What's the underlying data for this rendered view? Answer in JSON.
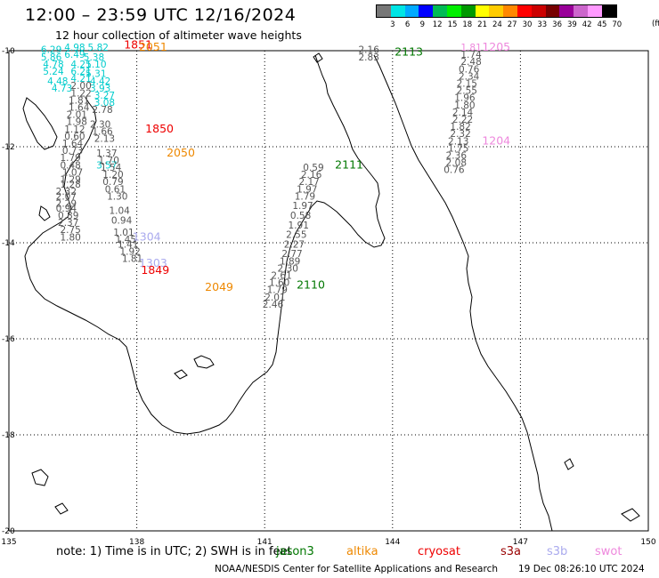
{
  "title": "12:00 – 23:59 UTC 12/16/2024",
  "subtitle": "12 hour collection of altimeter wave heights",
  "colorbar": {
    "colors": [
      "#777777",
      "#00e5e5",
      "#00aaff",
      "#0000ff",
      "#00bb55",
      "#00ee00",
      "#009900",
      "#ffff00",
      "#ffcc00",
      "#ff8800",
      "#ff0000",
      "#cc0000",
      "#770000",
      "#990099",
      "#cc66cc",
      "#ff99ff",
      "#000000"
    ],
    "ticks": [
      "3",
      "6",
      "9",
      "12",
      "15",
      "18",
      "21",
      "24",
      "27",
      "30",
      "33",
      "36",
      "39",
      "42",
      "45",
      "70"
    ],
    "unit": "(ft)"
  },
  "map": {
    "x_axis": [
      "135",
      "138",
      "141",
      "144",
      "147",
      "150"
    ],
    "y_axis": [
      "-10",
      "-12",
      "-14",
      "-16",
      "-18",
      "-20"
    ],
    "lon_range": [
      135,
      150
    ],
    "lat_range": [
      -20,
      -10
    ],
    "tracks": [
      {
        "satellite": "jason3",
        "color": "#007700",
        "label": "2113",
        "label_lat": -10.1,
        "label_lon": 144.05,
        "points": [
          {
            "lat": -10.05,
            "lon": 143.2,
            "v": "2.16"
          },
          {
            "lat": -10.2,
            "lon": 143.2,
            "v": "2.83"
          }
        ]
      },
      {
        "satellite": "swot",
        "color": "#ee88dd",
        "label": "1205",
        "label_lat": -10.0,
        "label_lon": 146.1,
        "points": [
          {
            "lat": -10.0,
            "lon": 145.6,
            "v": "1.81"
          }
        ]
      },
      {
        "satellite": "swot",
        "color": "#ee88dd",
        "label": "1204",
        "label_lat": -11.95,
        "label_lon": 146.1,
        "points": []
      },
      {
        "satellite": "other",
        "color": "#555555",
        "label": "",
        "label_lat": 0,
        "label_lon": 0,
        "points": [
          {
            "lat": -10.15,
            "lon": 145.6,
            "v": "1.74"
          },
          {
            "lat": -10.3,
            "lon": 145.6,
            "v": "2.48"
          },
          {
            "lat": -10.45,
            "lon": 145.55,
            "v": "0.76"
          },
          {
            "lat": -10.6,
            "lon": 145.55,
            "v": "2.34"
          },
          {
            "lat": -10.75,
            "lon": 145.5,
            "v": "2.15"
          },
          {
            "lat": -10.9,
            "lon": 145.5,
            "v": "2.55"
          },
          {
            "lat": -11.05,
            "lon": 145.45,
            "v": "1.96"
          },
          {
            "lat": -11.2,
            "lon": 145.45,
            "v": "1.80"
          },
          {
            "lat": -11.35,
            "lon": 145.4,
            "v": "2.14"
          },
          {
            "lat": -11.5,
            "lon": 145.4,
            "v": "2.22"
          },
          {
            "lat": -11.65,
            "lon": 145.35,
            "v": "1.82"
          },
          {
            "lat": -11.8,
            "lon": 145.35,
            "v": "2.32"
          },
          {
            "lat": -11.95,
            "lon": 145.3,
            "v": "2.13"
          },
          {
            "lat": -12.1,
            "lon": 145.3,
            "v": "1.75"
          },
          {
            "lat": -12.25,
            "lon": 145.25,
            "v": "2.36"
          },
          {
            "lat": -12.4,
            "lon": 145.25,
            "v": "2.08"
          },
          {
            "lat": -12.55,
            "lon": 145.2,
            "v": "0.76"
          }
        ]
      },
      {
        "satellite": "jason3",
        "color": "#007700",
        "label": "2111",
        "label_lat": -12.45,
        "label_lon": 142.65,
        "points": [
          {
            "lat": -12.5,
            "lon": 141.9,
            "v": "0.59"
          },
          {
            "lat": -12.65,
            "lon": 141.85,
            "v": "2.16"
          },
          {
            "lat": -12.8,
            "lon": 141.8,
            "v": "2.17"
          },
          {
            "lat": -12.95,
            "lon": 141.75,
            "v": "1.97"
          },
          {
            "lat": -13.1,
            "lon": 141.7,
            "v": "1.79"
          },
          {
            "lat": -13.3,
            "lon": 141.65,
            "v": "1.97"
          },
          {
            "lat": -13.5,
            "lon": 141.6,
            "v": "0.58"
          },
          {
            "lat": -13.7,
            "lon": 141.55,
            "v": "1.91"
          },
          {
            "lat": -13.9,
            "lon": 141.5,
            "v": "2.55"
          },
          {
            "lat": -14.1,
            "lon": 141.45,
            "v": "2.27"
          },
          {
            "lat": -14.3,
            "lon": 141.4,
            "v": "2.77"
          },
          {
            "lat": -14.45,
            "lon": 141.35,
            "v": "1.89"
          },
          {
            "lat": -14.6,
            "lon": 141.3,
            "v": "2.30"
          }
        ]
      },
      {
        "satellite": "jason3",
        "color": "#007700",
        "label": "2110",
        "label_lat": -14.95,
        "label_lon": 141.75,
        "points": [
          {
            "lat": -14.75,
            "lon": 141.15,
            "v": "2.61"
          },
          {
            "lat": -14.9,
            "lon": 141.1,
            "v": "1.60"
          },
          {
            "lat": -15.05,
            "lon": 141.05,
            "v": "1.79"
          },
          {
            "lat": -15.2,
            "lon": 141.0,
            "v": "2.01"
          },
          {
            "lat": -15.35,
            "lon": 140.95,
            "v": "2.46"
          }
        ]
      },
      {
        "satellite": "cryosat",
        "color": "#ee0000",
        "label": "1851",
        "label_lat": -9.95,
        "label_lon": 137.7,
        "points": []
      },
      {
        "satellite": "altika",
        "color": "#ee8800",
        "label": "2051",
        "label_lat": -10.0,
        "label_lon": 138.05,
        "points": []
      },
      {
        "satellite": "cryosat",
        "color": "#ee0000",
        "label": "1850",
        "label_lat": -11.7,
        "label_lon": 138.2,
        "points": []
      },
      {
        "satellite": "altika",
        "color": "#ee8800",
        "label": "2050",
        "label_lat": -12.2,
        "label_lon": 138.7,
        "points": []
      },
      {
        "satellite": "s3b",
        "color": "#aaaaee",
        "label": "1304",
        "label_lat": -13.95,
        "label_lon": 137.9,
        "points": []
      },
      {
        "satellite": "s3b",
        "color": "#aaaaee",
        "label": "1303",
        "label_lat": -14.5,
        "label_lon": 138.05,
        "points": []
      },
      {
        "satellite": "cryosat",
        "color": "#ee0000",
        "label": "1849",
        "label_lat": -14.65,
        "label_lon": 138.1,
        "points": []
      },
      {
        "satellite": "altika",
        "color": "#ee8800",
        "label": "2049",
        "label_lat": -15.0,
        "label_lon": 139.6,
        "points": []
      },
      {
        "satellite": "cyan",
        "color": "#00cccc",
        "label": "",
        "label_lat": 0,
        "label_lon": 0,
        "points": [
          {
            "lat": -10.05,
            "lon": 135.75,
            "v": "6.29"
          },
          {
            "lat": -10.0,
            "lon": 136.3,
            "v": "4.98"
          },
          {
            "lat": -10.0,
            "lon": 136.85,
            "v": "5.82"
          },
          {
            "lat": -10.15,
            "lon": 136.3,
            "v": "6.49"
          },
          {
            "lat": -10.2,
            "lon": 135.75,
            "v": "5.86"
          },
          {
            "lat": -10.2,
            "lon": 136.75,
            "v": "5.38"
          },
          {
            "lat": -10.35,
            "lon": 135.8,
            "v": "4.78"
          },
          {
            "lat": -10.35,
            "lon": 136.45,
            "v": "4.21"
          },
          {
            "lat": -10.35,
            "lon": 136.8,
            "v": "5.10"
          },
          {
            "lat": -10.5,
            "lon": 135.8,
            "v": "5.24"
          },
          {
            "lat": -10.5,
            "lon": 136.45,
            "v": "6.21"
          },
          {
            "lat": -10.55,
            "lon": 136.8,
            "v": "5.31"
          },
          {
            "lat": -10.65,
            "lon": 136.45,
            "v": "4.21"
          },
          {
            "lat": -10.7,
            "lon": 135.9,
            "v": "4.48"
          },
          {
            "lat": -10.7,
            "lon": 136.9,
            "v": "4.42"
          },
          {
            "lat": -10.85,
            "lon": 136.0,
            "v": "4.73"
          },
          {
            "lat": -10.85,
            "lon": 136.9,
            "v": "3.93"
          },
          {
            "lat": -11.0,
            "lon": 137.0,
            "v": "3.27"
          },
          {
            "lat": -11.15,
            "lon": 137.0,
            "v": "3.08"
          },
          {
            "lat": -12.45,
            "lon": 137.05,
            "v": "3.57"
          }
        ]
      },
      {
        "satellite": "gray",
        "color": "#555555",
        "label": "",
        "label_lat": 0,
        "label_lon": 0,
        "points": [
          {
            "lat": -10.8,
            "lon": 136.45,
            "v": "2.00"
          },
          {
            "lat": -10.95,
            "lon": 136.45,
            "v": "1.22"
          },
          {
            "lat": -11.1,
            "lon": 136.4,
            "v": "1.81"
          },
          {
            "lat": -11.25,
            "lon": 136.4,
            "v": "1.64"
          },
          {
            "lat": -11.3,
            "lon": 136.95,
            "v": "2.78"
          },
          {
            "lat": -11.4,
            "lon": 136.35,
            "v": "2.01"
          },
          {
            "lat": -11.55,
            "lon": 136.35,
            "v": "1.98"
          },
          {
            "lat": -11.6,
            "lon": 136.9,
            "v": "2.30"
          },
          {
            "lat": -11.7,
            "lon": 136.3,
            "v": "1.12"
          },
          {
            "lat": -11.75,
            "lon": 136.95,
            "v": "1.66"
          },
          {
            "lat": -11.85,
            "lon": 136.3,
            "v": "0.60"
          },
          {
            "lat": -11.9,
            "lon": 137.0,
            "v": "2.13"
          },
          {
            "lat": -12.0,
            "lon": 136.25,
            "v": "1.64"
          },
          {
            "lat": -12.15,
            "lon": 136.25,
            "v": "0.73"
          },
          {
            "lat": -12.2,
            "lon": 137.05,
            "v": "1.37"
          },
          {
            "lat": -12.3,
            "lon": 136.2,
            "v": "1.79"
          },
          {
            "lat": -12.35,
            "lon": 137.1,
            "v": "1.70"
          },
          {
            "lat": -12.45,
            "lon": 136.2,
            "v": "0.48"
          },
          {
            "lat": -12.5,
            "lon": 137.15,
            "v": "1.54"
          },
          {
            "lat": -12.6,
            "lon": 136.25,
            "v": "1.07"
          },
          {
            "lat": -12.65,
            "lon": 137.2,
            "v": "1.20"
          },
          {
            "lat": -12.75,
            "lon": 136.2,
            "v": "1.29"
          },
          {
            "lat": -12.8,
            "lon": 137.2,
            "v": "0.79"
          },
          {
            "lat": -12.85,
            "lon": 136.2,
            "v": "1.28"
          },
          {
            "lat": -12.95,
            "lon": 137.25,
            "v": "0.61"
          },
          {
            "lat": -13.0,
            "lon": 136.1,
            "v": "2.32"
          },
          {
            "lat": -13.1,
            "lon": 136.1,
            "v": "2.07"
          },
          {
            "lat": -13.1,
            "lon": 137.3,
            "v": "1.30"
          },
          {
            "lat": -13.25,
            "lon": 136.1,
            "v": "2.29"
          },
          {
            "lat": -13.35,
            "lon": 136.1,
            "v": "0.94"
          },
          {
            "lat": -13.4,
            "lon": 137.35,
            "v": "1.04"
          },
          {
            "lat": -13.5,
            "lon": 136.15,
            "v": "0.89"
          },
          {
            "lat": -13.6,
            "lon": 137.4,
            "v": "0.94"
          },
          {
            "lat": -13.65,
            "lon": 136.15,
            "v": "2.37"
          },
          {
            "lat": -13.8,
            "lon": 136.2,
            "v": "2.75"
          },
          {
            "lat": -13.85,
            "lon": 137.45,
            "v": "1.01"
          },
          {
            "lat": -13.95,
            "lon": 136.2,
            "v": "1.80"
          },
          {
            "lat": -14.0,
            "lon": 137.5,
            "v": "1.45"
          },
          {
            "lat": -14.1,
            "lon": 137.55,
            "v": "1.41"
          },
          {
            "lat": -14.25,
            "lon": 137.6,
            "v": "1.92"
          },
          {
            "lat": -14.4,
            "lon": 137.65,
            "v": "1.81"
          }
        ]
      }
    ]
  },
  "footer": {
    "note": "note:  1) Time is in UTC; 2) SWH is in feet",
    "legend": [
      {
        "name": "jason3",
        "color": "#007700"
      },
      {
        "name": "altika",
        "color": "#ee8800"
      },
      {
        "name": "cryosat",
        "color": "#ee0000"
      },
      {
        "name": "s3a",
        "color": "#990000"
      },
      {
        "name": "s3b",
        "color": "#aaaaee"
      },
      {
        "name": "swot",
        "color": "#ee88dd"
      }
    ],
    "credit": "NOAA/NESDIS Center for Satellite Applications and Research",
    "timestamp": "19 Dec 08:26:10 UTC 2024"
  }
}
